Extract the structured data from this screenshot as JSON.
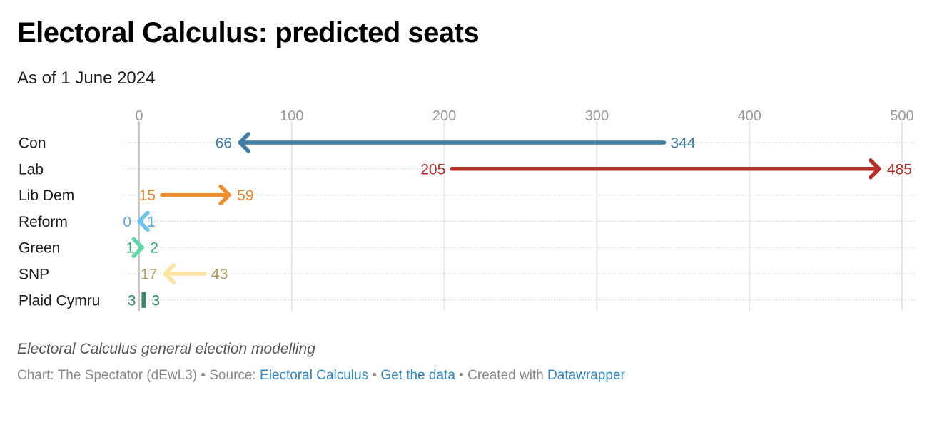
{
  "header": {
    "title": "Electoral Calculus: predicted seats",
    "subtitle": "As of 1 June 2024"
  },
  "footer": {
    "notes": "Electoral Calculus general election modelling",
    "byline_prefix": "Chart: The Spectator (dEwL3) • Source: ",
    "source_link": "Electoral Calculus",
    "sep1": " • ",
    "data_link": "Get the data",
    "sep2": " • Created with ",
    "tool_link": "Datawrapper"
  },
  "chart_data": {
    "type": "arrow",
    "title": "Electoral Calculus: predicted seats",
    "subtitle": "As of 1 June 2024",
    "xlabel": "",
    "ylabel": "",
    "xlim": [
      0,
      500
    ],
    "xticks": [
      0,
      100,
      200,
      300,
      400,
      500
    ],
    "grid": true,
    "categories": [
      "Con",
      "Lab",
      "Lib Dem",
      "Reform",
      "Green",
      "SNP",
      "Plaid Cymru"
    ],
    "series": [
      {
        "name": "Con",
        "from": 344,
        "to": 66,
        "color": "#3d7fa3",
        "label_color": "#3d7fa3"
      },
      {
        "name": "Lab",
        "from": 205,
        "to": 485,
        "color": "#b72d27",
        "label_color": "#b72d27"
      },
      {
        "name": "Lib Dem",
        "from": 15,
        "to": 59,
        "color": "#ef8f2f",
        "label_color": "#e4882c"
      },
      {
        "name": "Reform",
        "from": 1,
        "to": 0,
        "color": "#6cc3ee",
        "label_color": "#5ab0e0"
      },
      {
        "name": "Green",
        "from": 1,
        "to": 2,
        "color": "#5fd6a6",
        "label_color": "#3da573"
      },
      {
        "name": "SNP",
        "from": 43,
        "to": 17,
        "color": "#fbe3a0",
        "label_color": "#b09a5c"
      },
      {
        "name": "Plaid Cymru",
        "from": 3,
        "to": 3,
        "color": "#3a8a6a",
        "label_color": "#3a8a6a"
      }
    ]
  }
}
